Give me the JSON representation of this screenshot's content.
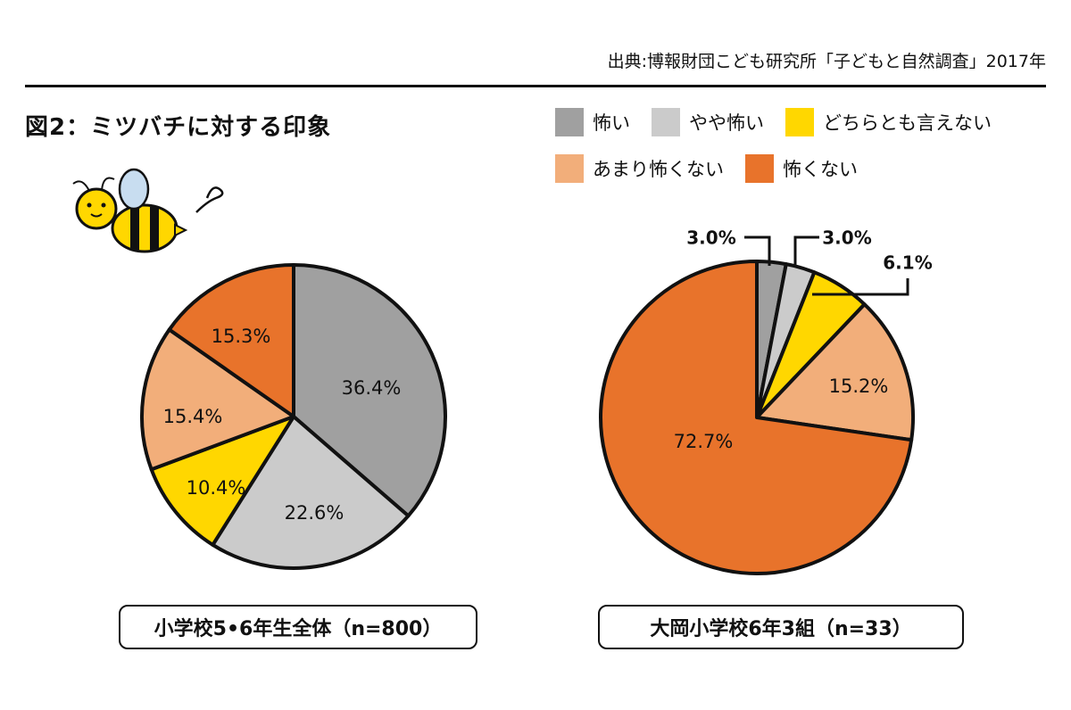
{
  "source": "出典:博報財団こども研究所「子どもと自然調査」2017年",
  "figure_title": "図2：ミツバチに対する印象",
  "legend": [
    {
      "label": "怖い",
      "color": "#a0a0a0"
    },
    {
      "label": "やや怖い",
      "color": "#cbcbcb"
    },
    {
      "label": "どちらとも言えない",
      "color": "#ffd700"
    },
    {
      "label": "あまり怖くない",
      "color": "#f2ae7a"
    },
    {
      "label": "怖くない",
      "color": "#e8732b"
    }
  ],
  "chart_data": [
    {
      "type": "pie",
      "title": "小学校5•6年生全体（n=800）",
      "categories": [
        "怖い",
        "やや怖い",
        "どちらとも言えない",
        "あまり怖くない",
        "怖くない"
      ],
      "values": [
        36.4,
        22.6,
        10.4,
        15.4,
        15.3
      ],
      "labels": [
        "36.4%",
        "22.6%",
        "10.4%",
        "15.4%",
        "15.3%"
      ],
      "unit": "%"
    },
    {
      "type": "pie",
      "title": "大岡小学校6年3組（n=33）",
      "categories": [
        "怖い",
        "やや怖い",
        "どちらとも言えない",
        "あまり怖くない",
        "怖くない"
      ],
      "values": [
        3.0,
        3.0,
        6.1,
        15.2,
        72.7
      ],
      "labels": [
        "3.0%",
        "3.0%",
        "6.1%",
        "15.2%",
        "72.7%"
      ],
      "unit": "%"
    }
  ]
}
